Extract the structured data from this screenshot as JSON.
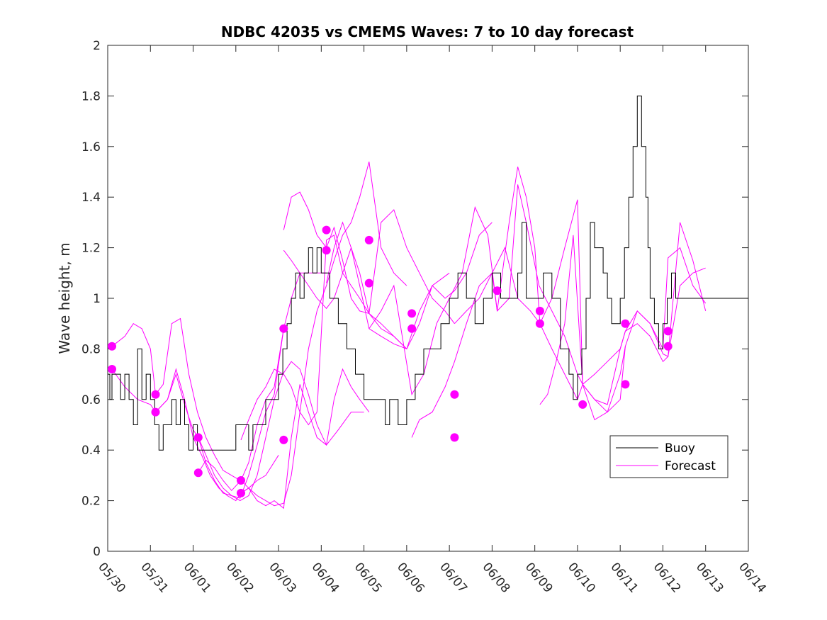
{
  "chart_data": {
    "type": "line",
    "title": "NDBC 42035 vs CMEMS Waves: 7 to 10 day forecast",
    "xlabel": "",
    "ylabel": "Wave height, m",
    "xlim": [
      "05/30",
      "06/14"
    ],
    "ylim": [
      0,
      2
    ],
    "yticks": [
      0,
      0.2,
      0.4,
      0.6,
      0.8,
      1,
      1.2,
      1.4,
      1.6,
      1.8,
      2
    ],
    "ytick_labels": [
      "0",
      "0.2",
      "0.4",
      "0.6",
      "0.8",
      "1",
      "1.2",
      "1.4",
      "1.6",
      "1.8",
      "2"
    ],
    "xtick_labels": [
      "05/30",
      "05/31",
      "06/01",
      "06/02",
      "06/03",
      "06/04",
      "06/05",
      "06/06",
      "06/07",
      "06/08",
      "06/09",
      "06/10",
      "06/11",
      "06/12",
      "06/13",
      "06/14"
    ],
    "grid": false,
    "legend": {
      "position": "lower-right",
      "entries": [
        "Buoy",
        "Forecast"
      ]
    },
    "colors": {
      "buoy": "#000000",
      "forecast": "#ff00ff"
    },
    "buoy": {
      "name": "Buoy",
      "x": [
        0,
        0.05,
        0.1,
        0.3,
        0.4,
        0.5,
        0.6,
        0.7,
        0.8,
        0.9,
        1.0,
        1.1,
        1.2,
        1.3,
        1.5,
        1.6,
        1.7,
        1.8,
        1.9,
        2.0,
        2.1,
        2.2,
        2.3,
        2.5,
        2.7,
        2.9,
        3.0,
        3.1,
        3.2,
        3.3,
        3.4,
        3.5,
        3.6,
        3.7,
        3.8,
        3.9,
        4.0,
        4.1,
        4.2,
        4.3,
        4.4,
        4.5,
        4.6,
        4.7,
        4.8,
        4.9,
        5.0,
        5.2,
        5.4,
        5.6,
        5.8,
        6.0,
        6.2,
        6.4,
        6.5,
        6.6,
        6.8,
        7.0,
        7.1,
        7.2,
        7.3,
        7.4,
        7.6,
        7.8,
        8.0,
        8.2,
        8.4,
        8.6,
        8.8,
        9.0,
        9.2,
        9.4,
        9.6,
        9.7,
        9.8,
        10.0,
        10.2,
        10.4,
        10.6,
        10.8,
        10.9,
        11.0,
        11.1,
        11.2,
        11.3,
        11.4,
        11.6,
        11.7,
        11.8,
        12.0,
        12.1,
        12.2,
        12.3,
        12.4,
        12.5,
        12.6,
        12.65,
        12.7,
        12.8,
        12.9,
        13.0,
        13.1,
        13.2,
        13.3
      ],
      "y": [
        0.7,
        0.6,
        0.7,
        0.6,
        0.7,
        0.6,
        0.5,
        0.8,
        0.6,
        0.7,
        0.6,
        0.5,
        0.4,
        0.5,
        0.6,
        0.5,
        0.6,
        0.5,
        0.4,
        0.5,
        0.4,
        0.4,
        0.4,
        0.4,
        0.4,
        0.4,
        0.5,
        0.5,
        0.5,
        0.4,
        0.5,
        0.5,
        0.5,
        0.6,
        0.6,
        0.6,
        0.7,
        0.8,
        0.9,
        1.0,
        1.1,
        1.0,
        1.1,
        1.2,
        1.1,
        1.2,
        1.1,
        1.0,
        0.9,
        0.8,
        0.7,
        0.6,
        0.6,
        0.6,
        0.5,
        0.6,
        0.5,
        0.6,
        0.6,
        0.7,
        0.7,
        0.8,
        0.8,
        0.9,
        1.0,
        1.1,
        1.0,
        0.9,
        1.0,
        1.1,
        1.0,
        1.0,
        1.1,
        1.3,
        1.0,
        1.0,
        1.1,
        1.0,
        0.8,
        0.7,
        0.6,
        0.7,
        0.8,
        1.0,
        1.3,
        1.2,
        1.1,
        1.0,
        0.9,
        1.0,
        1.2,
        1.4,
        1.6,
        1.8,
        1.6,
        1.4,
        1.2,
        1.0,
        0.9,
        0.8,
        0.9,
        1.0,
        1.1,
        1.0
      ]
    },
    "forecast_start_points": {
      "x": [
        0.1,
        0.1,
        1.12,
        1.12,
        2.12,
        2.12,
        3.12,
        3.12,
        4.12,
        4.12,
        5.12,
        5.12,
        6.12,
        6.12,
        7.12,
        7.12,
        8.12,
        8.12,
        9.12,
        10.12,
        10.12,
        11.12,
        12.12,
        12.12,
        13.12,
        13.12
      ],
      "y": [
        0.81,
        0.72,
        0.62,
        0.55,
        0.45,
        0.31,
        0.28,
        0.23,
        0.88,
        0.44,
        1.27,
        1.19,
        1.23,
        1.06,
        0.94,
        0.88,
        0.62,
        0.45,
        1.03,
        0.9,
        0.95,
        0.58,
        0.9,
        0.66,
        0.87,
        0.81
      ]
    },
    "forecast_series": [
      {
        "x": [
          0.1,
          0.4,
          0.6,
          0.8,
          1.0,
          1.12,
          1.3,
          1.5,
          1.7,
          1.9,
          2.1,
          2.3,
          2.5,
          2.7,
          2.9,
          3.1
        ],
        "y": [
          0.81,
          0.85,
          0.9,
          0.88,
          0.8,
          0.62,
          0.66,
          0.9,
          0.92,
          0.7,
          0.55,
          0.45,
          0.38,
          0.32,
          0.3,
          0.28
        ]
      },
      {
        "x": [
          0.1,
          0.4,
          0.7,
          1.0,
          1.12,
          1.4,
          1.6,
          1.8,
          2.0,
          2.2,
          2.4,
          2.6,
          2.8,
          3.0,
          3.12,
          3.3,
          3.5,
          3.7,
          4.0
        ],
        "y": [
          0.72,
          0.65,
          0.6,
          0.58,
          0.55,
          0.6,
          0.72,
          0.6,
          0.45,
          0.38,
          0.3,
          0.25,
          0.22,
          0.2,
          0.23,
          0.25,
          0.28,
          0.3,
          0.38
        ]
      },
      {
        "x": [
          1.12,
          1.4,
          1.6,
          1.8,
          2.0,
          2.12,
          2.3,
          2.5,
          2.7,
          2.9,
          3.1,
          3.3,
          3.5,
          3.7,
          3.9,
          4.12
        ],
        "y": [
          0.55,
          0.6,
          0.7,
          0.58,
          0.48,
          0.45,
          0.38,
          0.3,
          0.25,
          0.22,
          0.21,
          0.3,
          0.42,
          0.55,
          0.62,
          0.88
        ]
      },
      {
        "x": [
          2.12,
          2.3,
          2.5,
          2.7,
          2.9,
          3.12,
          3.3,
          3.5,
          3.7,
          3.9,
          4.12,
          4.3,
          4.5,
          4.7,
          4.9,
          5.12
        ],
        "y": [
          0.31,
          0.36,
          0.33,
          0.28,
          0.24,
          0.28,
          0.35,
          0.5,
          0.6,
          0.65,
          0.88,
          1.0,
          1.1,
          1.1,
          1.1,
          1.1
        ]
      },
      {
        "x": [
          2.12,
          2.3,
          2.5,
          2.7,
          2.9,
          3.1,
          3.3,
          3.5,
          3.7,
          3.9,
          4.1,
          4.3,
          4.5,
          4.7,
          4.9,
          5.12,
          5.4,
          5.7,
          6.0
        ],
        "y": [
          0.45,
          0.35,
          0.28,
          0.23,
          0.22,
          0.2,
          0.22,
          0.3,
          0.45,
          0.6,
          0.7,
          0.75,
          0.72,
          0.62,
          0.5,
          0.42,
          0.48,
          0.55,
          0.55
        ]
      },
      {
        "x": [
          3.12,
          3.3,
          3.5,
          3.7,
          3.9,
          4.12,
          4.3,
          4.5,
          4.7,
          4.9,
          5.12,
          5.3,
          5.5,
          5.7,
          5.9,
          6.12,
          6.4,
          6.7,
          7.0
        ],
        "y": [
          0.28,
          0.25,
          0.22,
          0.2,
          0.18,
          0.19,
          0.3,
          0.55,
          0.8,
          0.95,
          1.05,
          1.15,
          1.25,
          1.3,
          1.4,
          1.54,
          1.2,
          1.1,
          1.05
        ]
      },
      {
        "x": [
          3.12,
          3.3,
          3.5,
          3.7,
          3.9,
          4.12,
          4.3,
          4.5,
          4.7,
          4.9,
          5.12,
          5.3,
          5.5,
          5.7,
          5.9,
          6.12
        ],
        "y": [
          0.23,
          0.25,
          0.2,
          0.18,
          0.2,
          0.17,
          0.45,
          0.66,
          0.55,
          0.45,
          0.42,
          0.6,
          0.72,
          0.65,
          0.6,
          0.55
        ]
      },
      {
        "x": [
          3.12,
          3.3,
          3.5,
          3.7,
          3.9,
          4.12,
          4.3,
          4.5,
          4.7,
          4.9,
          5.12,
          5.3,
          5.5,
          5.7,
          5.9,
          6.12,
          6.4,
          6.7,
          7.0
        ],
        "y": [
          0.44,
          0.52,
          0.6,
          0.65,
          0.72,
          0.7,
          0.65,
          0.55,
          0.5,
          0.55,
          1.23,
          1.25,
          1.1,
          1.05,
          1.0,
          0.94,
          0.9,
          0.85,
          0.8
        ]
      },
      {
        "x": [
          4.12,
          4.3,
          4.5,
          4.7,
          4.9,
          5.12,
          5.3,
          5.5,
          5.7,
          5.9,
          6.12,
          6.4,
          6.7,
          7.0,
          7.3,
          7.6,
          7.9,
          8.12
        ],
        "y": [
          1.27,
          1.4,
          1.42,
          1.35,
          1.25,
          1.2,
          1.28,
          1.15,
          1.0,
          0.95,
          0.94,
          1.3,
          1.35,
          1.2,
          1.1,
          1.0,
          0.95,
          0.9
        ]
      },
      {
        "x": [
          4.12,
          4.3,
          4.5,
          4.7,
          4.9,
          5.12,
          5.3,
          5.5,
          5.7,
          5.9,
          6.12,
          6.4,
          6.7,
          7.0,
          7.3,
          7.6,
          8.0
        ],
        "y": [
          1.19,
          1.15,
          1.1,
          1.05,
          1.0,
          0.96,
          1.0,
          1.1,
          1.2,
          1.1,
          0.94,
          0.88,
          0.85,
          0.8,
          0.9,
          1.05,
          1.1
        ]
      },
      {
        "x": [
          5.12,
          5.3,
          5.5,
          5.7,
          5.9,
          6.12,
          6.4,
          6.7,
          7.0,
          7.3,
          7.6,
          7.9,
          8.12,
          8.4,
          8.7,
          9.0
        ],
        "y": [
          1.06,
          1.2,
          1.3,
          1.2,
          1.05,
          0.88,
          0.85,
          0.82,
          0.8,
          0.95,
          1.05,
          1.0,
          1.03,
          1.1,
          1.25,
          1.3
        ]
      },
      {
        "x": [
          6.12,
          6.4,
          6.7,
          7.12,
          7.4,
          7.7,
          8.0,
          8.3,
          8.6,
          8.9,
          9.12,
          9.4,
          9.6,
          9.8,
          10.0,
          10.12
        ],
        "y": [
          0.88,
          0.95,
          1.05,
          0.62,
          0.7,
          0.9,
          1.0,
          1.1,
          1.36,
          1.25,
          0.95,
          1.3,
          1.52,
          1.4,
          1.2,
          0.9
        ]
      },
      {
        "x": [
          7.12,
          7.3,
          7.6,
          7.9,
          8.12,
          8.4,
          8.7,
          9.0,
          9.3,
          9.6,
          9.9,
          10.12,
          10.4,
          10.7,
          11.0,
          11.12,
          11.4,
          11.7,
          12.0,
          12.12
        ],
        "y": [
          0.45,
          0.52,
          0.55,
          0.65,
          0.75,
          0.9,
          1.05,
          1.1,
          1.2,
          1.0,
          0.95,
          0.9,
          0.8,
          0.7,
          0.6,
          0.66,
          0.52,
          0.55,
          0.7,
          0.81
        ]
      },
      {
        "x": [
          8.12,
          8.4,
          8.7,
          9.0,
          9.12,
          9.4,
          9.6,
          9.8,
          10.1,
          10.4,
          10.7,
          11.0,
          11.12,
          11.4,
          11.7,
          12.0,
          12.12,
          12.4,
          12.7,
          13.0,
          13.12,
          13.4,
          13.7,
          14.0
        ],
        "y": [
          0.9,
          0.95,
          1.0,
          1.1,
          0.95,
          1.0,
          1.45,
          1.3,
          1.05,
          0.95,
          0.85,
          0.7,
          0.66,
          0.7,
          0.75,
          0.8,
          0.87,
          0.95,
          0.9,
          0.78,
          0.77,
          1.05,
          1.1,
          1.12
        ]
      },
      {
        "x": [
          10.12,
          10.3,
          10.5,
          10.7,
          10.9,
          11.12,
          11.4,
          11.7,
          12.0,
          12.12,
          12.4,
          12.7,
          13.0,
          13.12,
          13.4,
          13.7,
          14.0
        ],
        "y": [
          0.58,
          0.62,
          0.75,
          0.9,
          1.25,
          0.66,
          0.6,
          0.58,
          0.8,
          0.87,
          0.9,
          0.85,
          0.75,
          0.77,
          1.3,
          1.15,
          0.95
        ]
      },
      {
        "x": [
          10.12,
          10.4,
          10.7,
          11.0,
          11.12,
          11.4,
          11.7,
          12.0,
          12.12,
          12.4,
          12.7,
          13.0,
          13.12,
          13.4,
          13.7,
          14.0
        ],
        "y": [
          0.9,
          1.0,
          1.2,
          1.39,
          0.66,
          0.6,
          0.55,
          0.6,
          0.81,
          0.95,
          0.9,
          0.8,
          1.16,
          1.2,
          1.05,
          0.98
        ]
      }
    ]
  }
}
